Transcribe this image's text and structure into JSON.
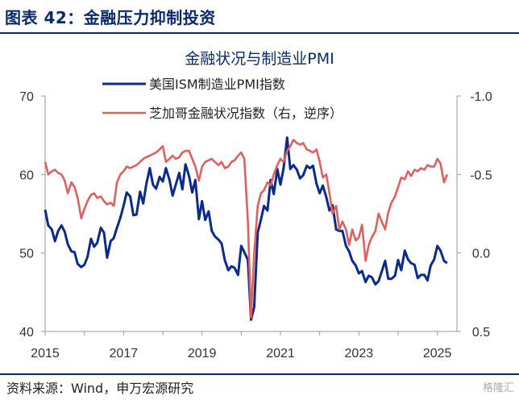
{
  "figure_title": "图表 42：金融压力抑制投资",
  "source": "资料来源：Wind，申万宏源研究",
  "watermark": "格隆汇",
  "chart_data": {
    "type": "line",
    "title": "金融状况与制造业PMI",
    "x_ticks": [
      "2015",
      "2017",
      "2019",
      "2021",
      "2023",
      "2025"
    ],
    "left_axis": {
      "ylim": [
        40,
        70
      ],
      "ticks": [
        "40",
        "50",
        "60",
        "70"
      ]
    },
    "right_axis": {
      "ylim": [
        0.5,
        -1.0
      ],
      "reversed": true,
      "ticks": [
        "0.5",
        "0.0",
        "-0.5",
        "-1.0"
      ]
    },
    "series": [
      {
        "name": "美国ISM制造业PMI指数",
        "axis": "left",
        "color": "#0a2a8c",
        "x": [
          2015.0,
          2015.08,
          2015.17,
          2015.25,
          2015.33,
          2015.42,
          2015.5,
          2015.58,
          2015.67,
          2015.75,
          2015.83,
          2015.92,
          2016.0,
          2016.08,
          2016.17,
          2016.25,
          2016.33,
          2016.42,
          2016.5,
          2016.58,
          2016.67,
          2016.75,
          2016.83,
          2016.92,
          2017.0,
          2017.08,
          2017.17,
          2017.25,
          2017.33,
          2017.42,
          2017.5,
          2017.58,
          2017.67,
          2017.75,
          2017.83,
          2017.92,
          2018.0,
          2018.08,
          2018.17,
          2018.25,
          2018.33,
          2018.42,
          2018.5,
          2018.58,
          2018.67,
          2018.75,
          2018.83,
          2018.92,
          2019.0,
          2019.08,
          2019.17,
          2019.25,
          2019.33,
          2019.42,
          2019.5,
          2019.58,
          2019.67,
          2019.75,
          2019.83,
          2019.92,
          2020.0,
          2020.08,
          2020.17,
          2020.25,
          2020.33,
          2020.42,
          2020.5,
          2020.58,
          2020.67,
          2020.75,
          2020.83,
          2020.92,
          2021.0,
          2021.08,
          2021.17,
          2021.25,
          2021.33,
          2021.42,
          2021.5,
          2021.58,
          2021.67,
          2021.75,
          2021.83,
          2021.92,
          2022.0,
          2022.08,
          2022.17,
          2022.25,
          2022.33,
          2022.42,
          2022.5,
          2022.58,
          2022.67,
          2022.75,
          2022.83,
          2022.92,
          2023.0,
          2023.08,
          2023.17,
          2023.25,
          2023.33,
          2023.42,
          2023.5,
          2023.58,
          2023.67,
          2023.75,
          2023.83,
          2023.92,
          2024.0,
          2024.08,
          2024.17,
          2024.25,
          2024.33,
          2024.42,
          2024.5,
          2024.58,
          2024.67,
          2024.75,
          2024.83,
          2024.92,
          2025.0,
          2025.08,
          2025.17,
          2025.25
        ],
        "values": [
          55.5,
          53.5,
          53.0,
          51.5,
          52.8,
          53.5,
          52.7,
          51.1,
          50.2,
          50.1,
          48.6,
          48.2,
          48.5,
          49.5,
          51.8,
          50.8,
          51.3,
          53.2,
          52.6,
          49.4,
          51.5,
          51.9,
          53.2,
          54.5,
          56.0,
          57.7,
          57.2,
          54.8,
          54.9,
          57.8,
          56.3,
          58.8,
          60.8,
          58.7,
          58.2,
          59.7,
          59.1,
          60.8,
          59.3,
          57.3,
          58.7,
          60.2,
          58.1,
          61.3,
          59.8,
          57.7,
          59.3,
          54.3,
          56.6,
          54.2,
          55.3,
          52.8,
          52.1,
          51.7,
          51.2,
          49.1,
          47.8,
          48.3,
          48.1,
          47.2,
          50.9,
          50.1,
          49.1,
          41.5,
          43.1,
          52.6,
          54.2,
          56.0,
          55.4,
          59.3,
          57.5,
          60.7,
          58.7,
          60.8,
          64.7,
          60.7,
          61.2,
          60.6,
          59.5,
          59.9,
          61.1,
          60.8,
          61.1,
          58.8,
          57.6,
          58.6,
          57.1,
          55.4,
          56.1,
          53.0,
          52.8,
          52.8,
          50.9,
          50.2,
          49.0,
          48.4,
          47.4,
          47.7,
          46.3,
          47.1,
          46.9,
          46.0,
          46.4,
          47.6,
          49.0,
          46.7,
          46.7,
          47.1,
          49.1,
          47.8,
          50.3,
          49.2,
          48.7,
          48.5,
          46.8,
          47.2,
          47.2,
          46.5,
          48.4,
          49.2,
          50.9,
          50.3,
          49.0,
          48.7
        ]
      },
      {
        "name": "芝加哥金融状况指数（右，逆序）",
        "axis": "right",
        "color": "#e06060",
        "x": [
          2015.0,
          2015.08,
          2015.17,
          2015.25,
          2015.33,
          2015.42,
          2015.5,
          2015.58,
          2015.67,
          2015.75,
          2015.83,
          2015.92,
          2016.0,
          2016.08,
          2016.17,
          2016.25,
          2016.33,
          2016.42,
          2016.5,
          2016.58,
          2016.67,
          2016.75,
          2016.83,
          2016.92,
          2017.0,
          2017.08,
          2017.17,
          2017.25,
          2017.33,
          2017.42,
          2017.5,
          2017.58,
          2017.67,
          2017.75,
          2017.83,
          2017.92,
          2018.0,
          2018.08,
          2018.17,
          2018.25,
          2018.33,
          2018.42,
          2018.5,
          2018.58,
          2018.67,
          2018.75,
          2018.83,
          2018.92,
          2019.0,
          2019.08,
          2019.17,
          2019.25,
          2019.33,
          2019.42,
          2019.5,
          2019.58,
          2019.67,
          2019.75,
          2019.83,
          2019.92,
          2020.0,
          2020.08,
          2020.17,
          2020.25,
          2020.33,
          2020.42,
          2020.5,
          2020.58,
          2020.67,
          2020.75,
          2020.83,
          2020.92,
          2021.0,
          2021.08,
          2021.17,
          2021.25,
          2021.33,
          2021.42,
          2021.5,
          2021.58,
          2021.67,
          2021.75,
          2021.83,
          2021.92,
          2022.0,
          2022.08,
          2022.17,
          2022.25,
          2022.33,
          2022.42,
          2022.5,
          2022.58,
          2022.67,
          2022.75,
          2022.83,
          2022.92,
          2023.0,
          2023.08,
          2023.17,
          2023.25,
          2023.33,
          2023.42,
          2023.5,
          2023.58,
          2023.67,
          2023.75,
          2023.83,
          2023.92,
          2024.0,
          2024.08,
          2024.17,
          2024.25,
          2024.33,
          2024.42,
          2024.5,
          2024.58,
          2024.67,
          2024.75,
          2024.83,
          2024.92,
          2025.0,
          2025.08,
          2025.17,
          2025.25
        ],
        "values": [
          -0.58,
          -0.5,
          -0.52,
          -0.53,
          -0.51,
          -0.5,
          -0.46,
          -0.38,
          -0.45,
          -0.42,
          -0.35,
          -0.22,
          -0.28,
          -0.33,
          -0.37,
          -0.38,
          -0.35,
          -0.36,
          -0.33,
          -0.31,
          -0.32,
          -0.3,
          -0.45,
          -0.5,
          -0.52,
          -0.55,
          -0.54,
          -0.55,
          -0.56,
          -0.58,
          -0.6,
          -0.61,
          -0.62,
          -0.63,
          -0.64,
          -0.66,
          -0.68,
          -0.58,
          -0.6,
          -0.62,
          -0.6,
          -0.61,
          -0.64,
          -0.65,
          -0.65,
          -0.6,
          -0.55,
          -0.46,
          -0.55,
          -0.58,
          -0.59,
          -0.6,
          -0.58,
          -0.56,
          -0.58,
          -0.54,
          -0.55,
          -0.58,
          -0.59,
          -0.62,
          -0.64,
          -0.6,
          -0.2,
          0.41,
          0.0,
          -0.3,
          -0.38,
          -0.4,
          -0.45,
          -0.43,
          -0.5,
          -0.56,
          -0.6,
          -0.58,
          -0.65,
          -0.68,
          -0.72,
          -0.7,
          -0.69,
          -0.7,
          -0.66,
          -0.65,
          -0.64,
          -0.66,
          -0.58,
          -0.48,
          -0.5,
          -0.38,
          -0.25,
          -0.3,
          -0.15,
          -0.2,
          -0.15,
          -0.05,
          -0.15,
          -0.08,
          -0.1,
          -0.18,
          0.05,
          -0.05,
          -0.1,
          -0.14,
          -0.25,
          -0.2,
          -0.15,
          -0.26,
          -0.32,
          -0.36,
          -0.42,
          -0.48,
          -0.47,
          -0.52,
          -0.49,
          -0.53,
          -0.52,
          -0.54,
          -0.53,
          -0.56,
          -0.55,
          -0.55,
          -0.6,
          -0.57,
          -0.45,
          -0.5
        ]
      }
    ]
  }
}
